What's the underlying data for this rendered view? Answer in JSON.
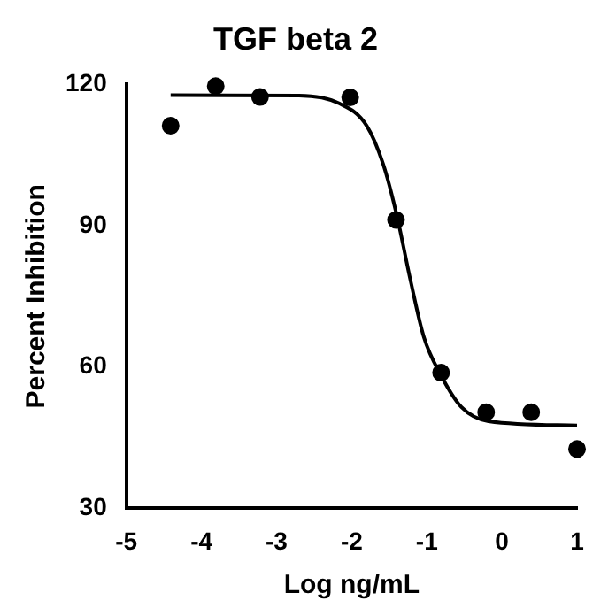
{
  "chart_data": {
    "type": "scatter",
    "title": "TGF beta 2",
    "xlabel": "Log ng/mL",
    "ylabel": "Percent Inhibition",
    "xlim": [
      -5,
      1
    ],
    "xticks": [
      -5,
      -4,
      -3,
      -2,
      -1,
      0,
      1
    ],
    "ylim": [
      30,
      120
    ],
    "yticks": [
      30,
      60,
      90,
      120
    ],
    "grid": false,
    "legend": false,
    "marker": "circle",
    "series": [
      {
        "color": "#000000",
        "x": [
          -4.41,
          -3.81,
          -3.22,
          -2.02,
          -1.41,
          -0.81,
          -0.21,
          0.39,
          1.0
        ],
        "values": [
          111.2,
          119.6,
          117.3,
          117.2,
          91.2,
          58.8,
          50.4,
          50.4,
          42.6
        ]
      },
      {
        "type": "line",
        "marker": "none",
        "color": "#000000",
        "x": [
          -4.41,
          -2.7,
          -2.16,
          -1.8,
          -1.58,
          -1.4,
          -1.22,
          -1.04,
          -0.81,
          -0.54,
          -0.18,
          1.0
        ],
        "values": [
          117.7,
          117.6,
          115.9,
          111.2,
          103,
          92.2,
          78.6,
          66.4,
          58.2,
          51.5,
          48.5,
          47.6
        ]
      }
    ]
  }
}
